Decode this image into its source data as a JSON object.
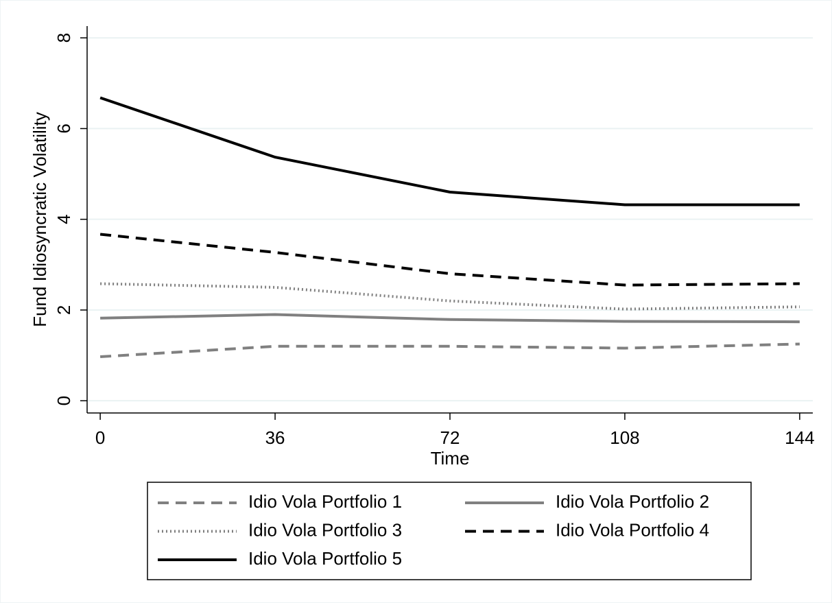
{
  "chart_data": {
    "type": "line",
    "x_label": "Time",
    "y_label": "Fund Idiosyncratic Volatility",
    "x": [
      0,
      36,
      72,
      108,
      144
    ],
    "series": [
      {
        "name": "Idio Vola Portfolio 1",
        "color": "#808080",
        "dash": "dashed",
        "values": [
          0.97,
          1.2,
          1.2,
          1.16,
          1.25
        ]
      },
      {
        "name": "Idio Vola Portfolio 2",
        "color": "#808080",
        "dash": "solid",
        "values": [
          1.82,
          1.9,
          1.79,
          1.75,
          1.74
        ]
      },
      {
        "name": "Idio Vola Portfolio 3",
        "color": "#808080",
        "dash": "dotted",
        "values": [
          2.58,
          2.5,
          2.2,
          2.02,
          2.07
        ]
      },
      {
        "name": "Idio Vola Portfolio 4",
        "color": "#000000",
        "dash": "dashed",
        "values": [
          3.67,
          3.27,
          2.8,
          2.55,
          2.58
        ]
      },
      {
        "name": "Idio Vola Portfolio 5",
        "color": "#000000",
        "dash": "solid",
        "values": [
          6.68,
          5.37,
          4.6,
          4.32,
          4.32
        ]
      }
    ],
    "xlim": [
      -2.7,
      146.7
    ],
    "xticks": [
      0,
      36,
      72,
      108,
      144
    ],
    "ylim": [
      -0.27,
      8.26
    ],
    "yticks": [
      0,
      2,
      4,
      6,
      8
    ],
    "grid": true,
    "legend": "bottom"
  }
}
